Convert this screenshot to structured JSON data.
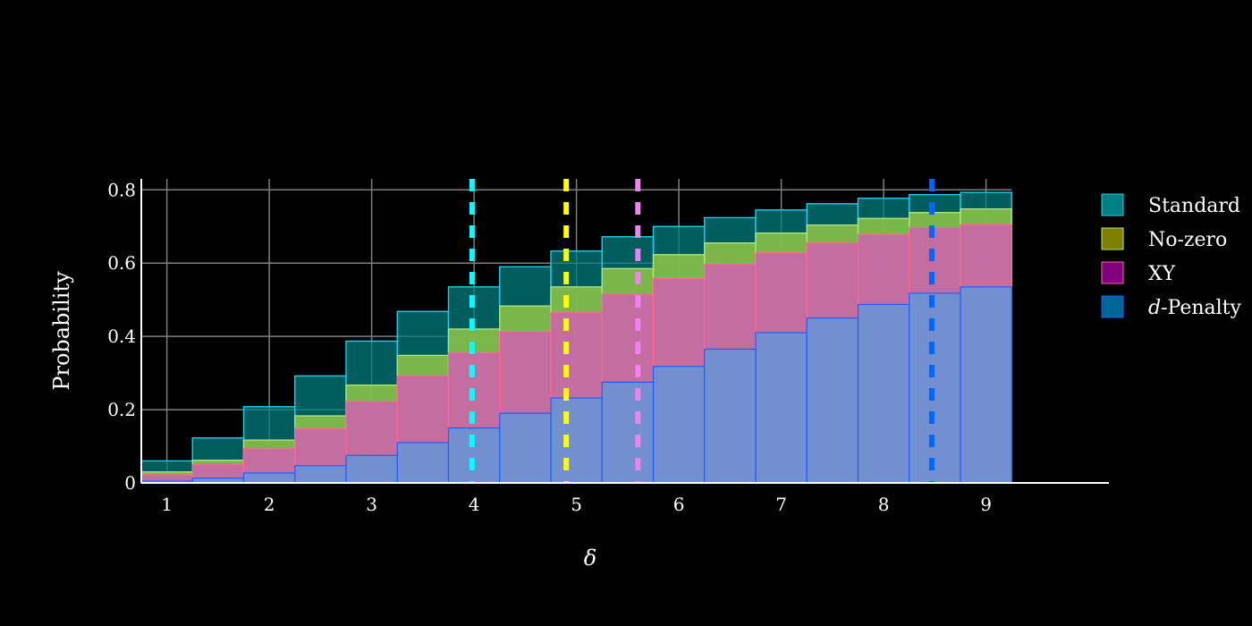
{
  "chart_data": {
    "type": "bar",
    "xlabel": "δ",
    "ylabel": "Probability",
    "xlim": [
      0.75,
      10.2
    ],
    "ylim": [
      0,
      0.83
    ],
    "x_ticks": [
      1,
      2,
      3,
      4,
      5,
      6,
      7,
      8,
      9
    ],
    "y_ticks": [
      0,
      0.2,
      0.4,
      0.6,
      0.8
    ],
    "y_tick_labels": [
      "0",
      "0.2",
      "0.4",
      "0.6",
      "0.8"
    ],
    "bin_edges": [
      0.75,
      1.25,
      1.75,
      2.25,
      2.75,
      3.25,
      3.75,
      4.25,
      4.75,
      5.25,
      5.75,
      6.25,
      6.75,
      7.25,
      7.75,
      8.25,
      8.75,
      9.25
    ],
    "series": [
      {
        "name": "Standard",
        "color": "#008080",
        "edge": "#19d3f3",
        "values": [
          0.06,
          0.123,
          0.208,
          0.292,
          0.387,
          0.468,
          0.535,
          0.59,
          0.633,
          0.672,
          0.7,
          0.724,
          0.745,
          0.762,
          0.777,
          0.787,
          0.793
        ]
      },
      {
        "name": "No-zero",
        "color": "#808000",
        "edge": "#b6e880",
        "values": [
          0.03,
          0.062,
          0.117,
          0.183,
          0.267,
          0.348,
          0.42,
          0.483,
          0.535,
          0.585,
          0.623,
          0.655,
          0.682,
          0.704,
          0.722,
          0.738,
          0.748
        ]
      },
      {
        "name": "XY",
        "color": "#800080",
        "edge": "#ff6692",
        "values": [
          0.022,
          0.05,
          0.093,
          0.148,
          0.222,
          0.292,
          0.355,
          0.413,
          0.465,
          0.515,
          0.558,
          0.597,
          0.628,
          0.655,
          0.678,
          0.697,
          0.705
        ]
      },
      {
        "name": "d-Penalty",
        "name_italic": "d",
        "name_rest": "-Penalty",
        "color": "#006699",
        "edge": "#1f5cff",
        "values": [
          0.005,
          0.013,
          0.027,
          0.047,
          0.075,
          0.11,
          0.15,
          0.19,
          0.232,
          0.275,
          0.318,
          0.365,
          0.41,
          0.45,
          0.487,
          0.518,
          0.535
        ]
      }
    ],
    "vlines": [
      {
        "x": 3.98,
        "color": "#00ffff"
      },
      {
        "x": 4.9,
        "color": "#ffff00"
      },
      {
        "x": 5.6,
        "color": "#ee82ee"
      },
      {
        "x": 8.47,
        "color": "#0066ff"
      }
    ],
    "grid": true,
    "legend_position": "right"
  }
}
